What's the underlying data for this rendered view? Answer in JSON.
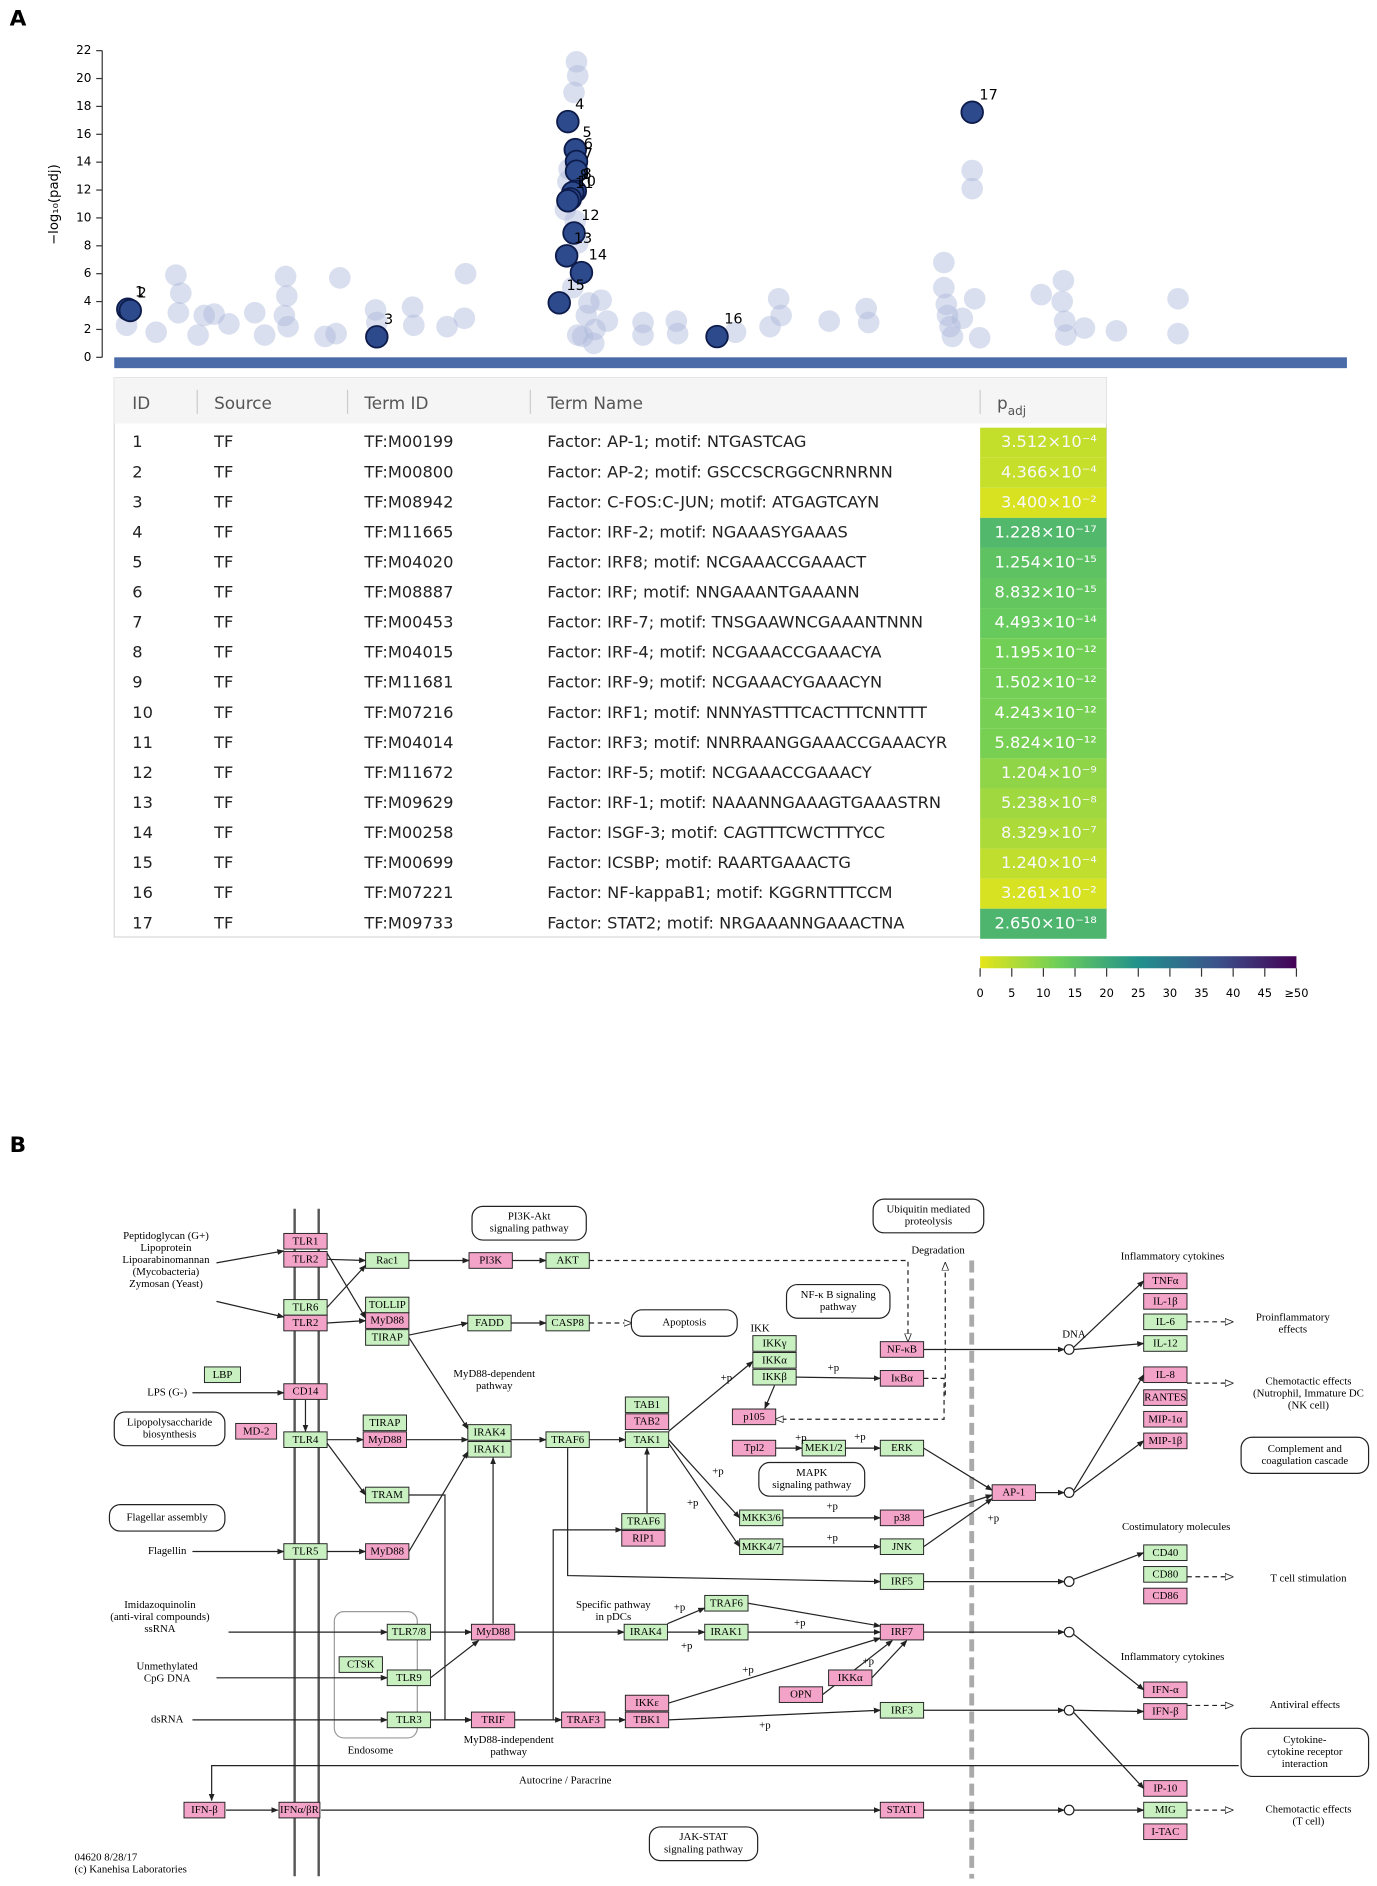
{
  "panel_labels": [
    "A",
    "B"
  ],
  "chart_data": {
    "type": "scatter",
    "y_label": "−log₁₀(padj)",
    "xlim": [
      0,
      100
    ],
    "ylim": [
      0,
      22
    ],
    "yticks": [
      0,
      2,
      4,
      6,
      8,
      10,
      12,
      14,
      16,
      18,
      20,
      22
    ],
    "series": [
      {
        "color": "#aab8d9",
        "x": [
          1.0,
          3.4,
          5.0,
          5.2,
          5.4,
          6.8,
          7.3,
          8.1,
          9.3,
          11.4,
          12.2,
          13.9,
          14.0,
          13.8,
          14.1,
          17.1,
          18.3,
          18.0,
          21.2,
          21.3,
          24.2,
          24.3,
          27.0,
          28.5,
          28.4,
          37.5,
          37.6,
          37.3,
          36.9,
          36.8,
          36.6,
          37.4,
          37.6,
          37.2,
          38.5,
          39.5,
          38.3,
          39.0,
          38.0,
          40.0,
          38.9,
          37.6,
          42.9,
          42.9,
          45.6,
          45.7,
          50.4,
          53.2,
          53.9,
          54.1,
          58.0,
          61.0,
          61.2,
          67.3,
          67.3,
          67.5,
          67.6,
          67.8,
          68.0,
          68.8,
          69.6,
          69.6,
          70.2,
          69.8,
          75.2,
          77.0,
          76.9,
          77.1,
          77.2,
          78.7,
          81.3,
          86.3,
          86.3
        ],
        "values": [
          2.3,
          1.8,
          5.9,
          3.2,
          4.6,
          1.6,
          3.0,
          3.1,
          2.4,
          3.2,
          1.6,
          5.8,
          4.4,
          3.0,
          2.2,
          1.5,
          5.7,
          1.7,
          3.4,
          2.5,
          3.6,
          2.3,
          2.2,
          6.0,
          2.8,
          21.2,
          20.2,
          19.0,
          13.5,
          12.6,
          10.6,
          9.8,
          8.2,
          5.0,
          3.9,
          4.1,
          3.0,
          2.0,
          1.5,
          2.6,
          1.0,
          1.6,
          2.5,
          1.6,
          2.6,
          1.7,
          1.8,
          2.2,
          4.2,
          3.0,
          2.6,
          3.5,
          2.5,
          6.8,
          5.0,
          3.8,
          3.0,
          2.2,
          1.5,
          2.8,
          13.4,
          12.1,
          1.4,
          4.2,
          4.5,
          5.5,
          4.0,
          2.6,
          1.6,
          2.1,
          1.9,
          4.2,
          1.7
        ]
      },
      {
        "color": "#2c4a8c",
        "x": [
          1.1,
          1.3,
          21.3,
          36.8,
          37.4,
          37.5,
          37.5,
          37.4,
          37.2,
          37.0,
          36.8,
          37.3,
          36.7,
          37.9,
          36.1,
          48.9,
          69.6
        ],
        "values": [
          3.45,
          3.36,
          1.47,
          16.91,
          14.9,
          14.05,
          13.35,
          11.92,
          11.82,
          11.37,
          11.23,
          8.92,
          7.28,
          6.08,
          3.91,
          1.49,
          17.58
        ]
      }
    ]
  },
  "table": {
    "headers": [
      "ID",
      "Source",
      "Term ID",
      "Term Name",
      "p"
    ],
    "header_sub": "adj",
    "rows": [
      [
        "1",
        "TF",
        "TF:M00199",
        "Factor: AP-1; motif: NTGASTCAG",
        "3.512×10⁻⁴"
      ],
      [
        "2",
        "TF",
        "TF:M00800",
        "Factor: AP-2; motif: GSCCSCRGGCNRNRNN",
        "4.366×10⁻⁴"
      ],
      [
        "3",
        "TF",
        "TF:M08942",
        "Factor: C-FOS:C-JUN; motif: ATGAGTCAYN",
        "3.400×10⁻²"
      ],
      [
        "4",
        "TF",
        "TF:M11665",
        "Factor: IRF-2; motif: NGAAASYGAAAS",
        "1.228×10⁻¹⁷"
      ],
      [
        "5",
        "TF",
        "TF:M04020",
        "Factor: IRF8; motif: NCGAAACCGAAACT",
        "1.254×10⁻¹⁵"
      ],
      [
        "6",
        "TF",
        "TF:M08887",
        "Factor: IRF; motif: NNGAAANTGAAANN",
        "8.832×10⁻¹⁵"
      ],
      [
        "7",
        "TF",
        "TF:M00453",
        "Factor: IRF-7; motif: TNSGAAWNCGAAANTNNN",
        "4.493×10⁻¹⁴"
      ],
      [
        "8",
        "TF",
        "TF:M04015",
        "Factor: IRF-4; motif: NCGAAACCGAAACYA",
        "1.195×10⁻¹²"
      ],
      [
        "9",
        "TF",
        "TF:M11681",
        "Factor: IRF-9; motif: NCGAAACYGAAACYN",
        "1.502×10⁻¹²"
      ],
      [
        "10",
        "TF",
        "TF:M07216",
        "Factor: IRF1; motif: NNNYASTTTCACTTTCNNTTT",
        "4.243×10⁻¹²"
      ],
      [
        "11",
        "TF",
        "TF:M04014",
        "Factor: IRF3; motif: NNRRAANGGAAACCGAAACYR",
        "5.824×10⁻¹²"
      ],
      [
        "12",
        "TF",
        "TF:M11672",
        "Factor: IRF-5; motif: NCGAAACCGAAACY",
        "1.204×10⁻⁹"
      ],
      [
        "13",
        "TF",
        "TF:M09629",
        "Factor: IRF-1; motif: NAAANNGAAAGTGAAASTRN",
        "5.238×10⁻⁸"
      ],
      [
        "14",
        "TF",
        "TF:M00258",
        "Factor: ISGF-3; motif: CAGTTTCWCTTTYCC",
        "8.329×10⁻⁷"
      ],
      [
        "15",
        "TF",
        "TF:M00699",
        "Factor: ICSBP; motif: RAARTGAAACTG",
        "1.240×10⁻⁴"
      ],
      [
        "16",
        "TF",
        "TF:M07221",
        "Factor: NF-kappaB1; motif: KGGRNTTTCCM",
        "3.261×10⁻²"
      ],
      [
        "17",
        "TF",
        "TF:M09733",
        "Factor: STAT2; motif: NRGAAANNGAAACTNA",
        "2.650×10⁻¹⁸"
      ]
    ]
  },
  "colorbar": {
    "lim": [
      0,
      50
    ],
    "ticks": [
      0,
      5,
      10,
      15,
      20,
      25,
      30,
      35,
      40,
      45,
      {
        "value": 50,
        "label": "≥50"
      }
    ],
    "colors": [
      "#e6e51a",
      "#6cce59",
      "#21918c",
      "#3b528b",
      "#440154"
    ]
  },
  "pathway": {
    "nodes": [
      {
        "label": "TLR1",
        "color": "#f4a3c8"
      },
      {
        "label": "TLR2",
        "color": "#f4a3c8"
      },
      {
        "label": "TLR6",
        "color": "#c8f0c0"
      },
      {
        "label": "TLR2",
        "color": "#f4a3c8"
      },
      {
        "label": "CD14",
        "color": "#f4a3c8"
      },
      {
        "label": "TLR4",
        "color": "#c8f0c0"
      },
      {
        "label": "MD-2",
        "color": "#f4a3c8"
      },
      {
        "label": "TLR5",
        "color": "#c8f0c0"
      },
      {
        "label": "IFNα/βR",
        "color": "#f4a3c8"
      },
      {
        "label": "IFN-β",
        "color": "#f4a3c8"
      },
      {
        "label": "LBP",
        "color": "#c8f0c0"
      },
      {
        "label": "Rac1",
        "color": "#c8f0c0"
      },
      {
        "label": "PI3K",
        "color": "#f4a3c8"
      },
      {
        "label": "AKT",
        "color": "#c8f0c0"
      },
      {
        "label": "TOLLIP",
        "color": "#c8f0c0"
      },
      {
        "label": "MyD88",
        "color": "#f4a3c8"
      },
      {
        "label": "TIRAP",
        "color": "#c8f0c0"
      },
      {
        "label": "FADD",
        "color": "#c8f0c0"
      },
      {
        "label": "CASP8",
        "color": "#c8f0c0"
      },
      {
        "label": "TIRAP",
        "color": "#c8f0c0"
      },
      {
        "label": "MyD88",
        "color": "#f4a3c8"
      },
      {
        "label": "IRAK4",
        "color": "#c8f0c0"
      },
      {
        "label": "IRAK1",
        "color": "#c8f0c0"
      },
      {
        "label": "TRAF6",
        "color": "#c8f0c0"
      },
      {
        "label": "TRAM",
        "color": "#c8f0c0"
      },
      {
        "label": "MyD88",
        "color": "#f4a3c8"
      },
      {
        "label": "TAB1",
        "color": "#c8f0c0"
      },
      {
        "label": "TAB2",
        "color": "#f4a3c8"
      },
      {
        "label": "TAK1",
        "color": "#c8f0c0"
      },
      {
        "label": "TRAF6",
        "color": "#c8f0c0"
      },
      {
        "label": "RIP1",
        "color": "#f4a3c8"
      },
      {
        "label": "IKKγ",
        "color": "#c8f0c0"
      },
      {
        "label": "IKKα",
        "color": "#c8f0c0"
      },
      {
        "label": "IKKβ",
        "color": "#c8f0c0"
      },
      {
        "label": "NF-κB",
        "color": "#f4a3c8"
      },
      {
        "label": "IκBα",
        "color": "#f4a3c8"
      },
      {
        "label": "p105",
        "color": "#f4a3c8"
      },
      {
        "label": "Tpl2",
        "color": "#f4a3c8"
      },
      {
        "label": "MEK1/2",
        "color": "#c8f0c0"
      },
      {
        "label": "ERK",
        "color": "#c8f0c0"
      },
      {
        "label": "MKK3/6",
        "color": "#c8f0c0"
      },
      {
        "label": "p38",
        "color": "#f4a3c8"
      },
      {
        "label": "MKK4/7",
        "color": "#c8f0c0"
      },
      {
        "label": "JNK",
        "color": "#c8f0c0"
      },
      {
        "label": "AP-1",
        "color": "#f4a3c8"
      },
      {
        "label": "IRF5",
        "color": "#c8f0c0"
      },
      {
        "label": "TLR7/8",
        "color": "#c8f0c0"
      },
      {
        "label": "MyD88",
        "color": "#f4a3c8"
      },
      {
        "label": "CTSK",
        "color": "#c8f0c0"
      },
      {
        "label": "TLR9",
        "color": "#c8f0c0"
      },
      {
        "label": "TLR3",
        "color": "#c8f0c0"
      },
      {
        "label": "TRIF",
        "color": "#f4a3c8"
      },
      {
        "label": "TRAF3",
        "color": "#f4a3c8"
      },
      {
        "label": "IKKε",
        "color": "#f4a3c8"
      },
      {
        "label": "TBK1",
        "color": "#f4a3c8"
      },
      {
        "label": "IRAK4",
        "color": "#c8f0c0"
      },
      {
        "label": "IRAK1",
        "color": "#c8f0c0"
      },
      {
        "label": "TRAF6",
        "color": "#c8f0c0"
      },
      {
        "label": "IRF7",
        "color": "#f4a3c8"
      },
      {
        "label": "OPN",
        "color": "#f4a3c8"
      },
      {
        "label": "IKKα",
        "color": "#f4a3c8"
      },
      {
        "label": "IRF3",
        "color": "#c8f0c0"
      },
      {
        "label": "STAT1",
        "color": "#f4a3c8"
      },
      {
        "label": "TNFα",
        "color": "#f4a3c8"
      },
      {
        "label": "IL-1β",
        "color": "#f4a3c8"
      },
      {
        "label": "IL-6",
        "color": "#c8f0c0"
      },
      {
        "label": "IL-12",
        "color": "#c8f0c0"
      },
      {
        "label": "IL-8",
        "color": "#f4a3c8"
      },
      {
        "label": "RANTES",
        "color": "#f4a3c8"
      },
      {
        "label": "MIP-1α",
        "color": "#f4a3c8"
      },
      {
        "label": "MIP-1β",
        "color": "#f4a3c8"
      },
      {
        "label": "CD40",
        "color": "#c8f0c0"
      },
      {
        "label": "CD80",
        "color": "#c8f0c0"
      },
      {
        "label": "CD86",
        "color": "#f4a3c8"
      },
      {
        "label": "IFN-α",
        "color": "#f4a3c8"
      },
      {
        "label": "IFN-β",
        "color": "#f4a3c8"
      },
      {
        "label": "IP-10",
        "color": "#f4a3c8"
      },
      {
        "label": "MIG",
        "color": "#c8f0c0"
      },
      {
        "label": "I-TAC",
        "color": "#f4a3c8"
      }
    ],
    "maps": [
      [
        "PI3K-Akt",
        "signaling pathway"
      ],
      [
        "Ubiquitin mediated",
        "proteolysis"
      ],
      [
        "NF-κ B signaling",
        "pathway"
      ],
      [
        "Apoptosis"
      ],
      [
        "Lipopolysaccharide",
        "biosynthesis"
      ],
      [
        "Flagellar assembly"
      ],
      [
        "MAPK",
        "signaling pathway"
      ],
      [
        "Complement and",
        "coagulation cascade"
      ],
      [
        "Cytokine-",
        "cytokine receptor",
        "interaction"
      ],
      [
        "JAK-STAT",
        "signaling pathway"
      ]
    ],
    "labels": [
      [
        "Peptidoglycan (G+)",
        "Lipoprotein",
        "Lipoarabinomannan",
        "(Mycobacteria)",
        "Zymosan (Yeast)"
      ],
      [
        "LPS (G-)"
      ],
      [
        "Flagellin"
      ],
      [
        "Imidazoquinolin",
        "(anti-viral compounds)",
        "ssRNA"
      ],
      [
        "Unmethylated",
        "CpG DNA"
      ],
      [
        "dsRNA"
      ],
      [
        "MyD88-dependent",
        "pathway"
      ],
      [
        "Degradation"
      ],
      [
        "IKK"
      ],
      [
        "DNA"
      ],
      [
        "Inflammatory cytokines"
      ],
      [
        "Proinflammatory",
        "effects"
      ],
      [
        "Chemotactic effects",
        "(Nutrophil, Immature DC",
        "(NK cell)"
      ],
      [
        "Costimulatory molecules"
      ],
      [
        "T cell stimulation"
      ],
      [
        "Inflammatory cytokines"
      ],
      [
        "Antiviral effects"
      ],
      [
        "Chemotactic effects",
        "(T cell)"
      ],
      [
        "Specific pathway",
        "in pDCs"
      ],
      [
        "Endosome"
      ],
      [
        "MyD88-independent",
        "pathway"
      ],
      [
        "Autocrine / Paracrine"
      ],
      [
        "04620 8/28/17",
        "(c) Kanehisa Laboratories"
      ]
    ],
    "plus_p": [
      "+p",
      "+p",
      "+p",
      "+p",
      "+p",
      "+p",
      "+p",
      "+p",
      "+p",
      "+p",
      "+p",
      "+p",
      "+p",
      "+p",
      "+p"
    ]
  }
}
